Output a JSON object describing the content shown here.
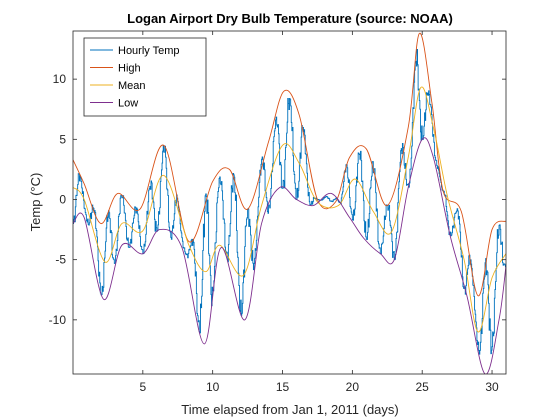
{
  "chart_data": {
    "type": "line",
    "title": "Logan Airport Dry Bulb Temperature (source: NOAA)",
    "xlabel": "Time elapsed from Jan 1, 2011 (days)",
    "ylabel": "Temp (°C)",
    "xlim": [
      0,
      31
    ],
    "ylim": [
      -14.5,
      14
    ],
    "xticks": [
      5,
      10,
      15,
      20,
      25,
      30
    ],
    "yticks": [
      -10,
      -5,
      0,
      5,
      10
    ],
    "grid": false,
    "legend_position": "top-left",
    "series": [
      {
        "name": "Hourly Temp",
        "color": "#0072BD",
        "x": [
          0,
          0.5,
          1.0,
          1.5,
          2.2,
          3.0,
          4.2,
          5.0,
          6.5,
          7.0,
          7.8,
          8.5,
          9.3,
          10.5,
          11.5,
          12.2,
          13.0,
          14.5,
          15.1,
          16.0,
          17.0,
          17.5,
          18.5,
          19.5,
          21.0,
          22.0,
          23.0,
          24.0,
          24.7,
          25.5,
          26.5,
          27.5,
          28.5,
          29.5,
          30.0,
          31.0
        ],
        "y": [
          3.2,
          1.0,
          0.8,
          -1.0,
          -8.2,
          -2.5,
          -0.5,
          -4.5,
          4.5,
          -2.0,
          -4.3,
          -5.0,
          -12.0,
          0.0,
          -4.0,
          -10.0,
          0.0,
          6.0,
          8.5,
          3.0,
          0.0,
          -0.5,
          -0.3,
          -1.0,
          4.0,
          1.5,
          -2.0,
          8.0,
          13.8,
          9.0,
          1.0,
          0.5,
          -8.0,
          -14.5,
          -6.0,
          -5.0
        ]
      },
      {
        "name": "High",
        "color": "#D95319",
        "x": [
          0,
          0.8,
          2.0,
          3.2,
          4.8,
          6.5,
          8.3,
          10.0,
          11.2,
          12.5,
          14.0,
          15.1,
          16.2,
          17.5,
          18.8,
          19.8,
          21.0,
          22.5,
          24.0,
          24.8,
          25.7,
          26.5,
          27.8,
          29.0,
          30.0,
          31.0
        ],
        "y": [
          3.3,
          1.3,
          -2.0,
          0.5,
          -0.8,
          4.5,
          -3.5,
          1.5,
          2.5,
          -0.8,
          4.8,
          9.0,
          7.0,
          0.0,
          -0.2,
          3.5,
          4.2,
          -0.5,
          6.0,
          13.8,
          8.0,
          0.7,
          -1.0,
          -8.0,
          -2.5,
          -1.8
        ]
      },
      {
        "name": "Mean",
        "color": "#EDB120",
        "x": [
          0,
          0.8,
          2.3,
          3.5,
          5.0,
          6.5,
          8.3,
          9.5,
          10.5,
          12.2,
          13.5,
          15.0,
          16.2,
          17.5,
          19.0,
          20.2,
          21.5,
          22.8,
          24.0,
          24.9,
          25.8,
          26.8,
          28.0,
          29.0,
          30.0,
          31.0
        ],
        "y": [
          1.0,
          0.0,
          -5.2,
          -2.0,
          -2.6,
          2.0,
          -3.8,
          -6.0,
          -3.8,
          -6.3,
          -0.5,
          4.5,
          3.0,
          -0.2,
          -0.5,
          1.7,
          -1.0,
          -2.7,
          3.5,
          9.3,
          6.0,
          0.3,
          -5.0,
          -11.0,
          -6.5,
          -4.5
        ]
      },
      {
        "name": "Low",
        "color": "#7E2F8E",
        "x": [
          0,
          0.8,
          2.2,
          3.5,
          5.0,
          6.2,
          7.8,
          9.4,
          10.6,
          12.3,
          13.5,
          14.8,
          16.0,
          17.2,
          18.5,
          19.8,
          20.8,
          22.0,
          23.0,
          24.0,
          25.0,
          25.8,
          27.0,
          28.2,
          29.5,
          30.5,
          31.0
        ],
        "y": [
          -2.0,
          -1.5,
          -8.3,
          -3.8,
          -4.5,
          -2.5,
          -4.0,
          -12.0,
          -4.0,
          -10.0,
          -2.0,
          1.0,
          0.0,
          -0.5,
          0.5,
          -1.5,
          -3.2,
          -4.5,
          -5.0,
          1.0,
          5.0,
          3.5,
          -3.0,
          -8.0,
          -14.5,
          -10.0,
          -5.5
        ]
      }
    ]
  }
}
